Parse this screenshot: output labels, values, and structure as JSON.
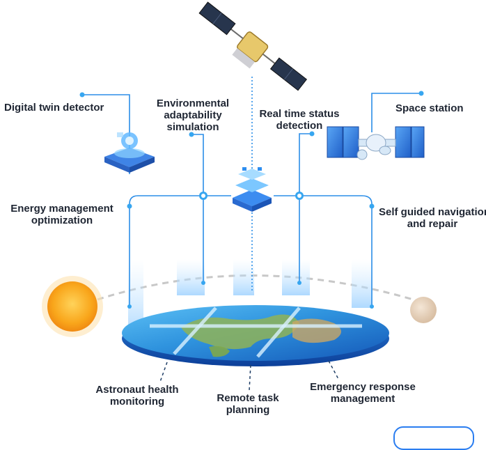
{
  "labels": {
    "digital_twin": "Digital twin detector",
    "environmental_1": "Environmental",
    "environmental_2": "adaptability",
    "environmental_3": "simulation",
    "real_time_1": "Real time status",
    "real_time_2": "detection",
    "space_station": "Space station",
    "energy_1": "Energy management",
    "energy_2": "optimization",
    "self_guided_1": "Self guided navigation",
    "self_guided_2": "and repair",
    "astronaut_1": "Astronaut health",
    "astronaut_2": "monitoring",
    "remote_1": "Remote task",
    "remote_2": "planning",
    "emergency_1": "Emergency response",
    "emergency_2": "management"
  },
  "colors": {
    "line": "#2b8ee8",
    "node": "#37a6f0",
    "text": "#1f2633",
    "sun": "#f7a41c",
    "earth_blue": "#1f7fd6"
  },
  "icons": [
    "satellite-icon",
    "hologram-platform-icon",
    "data-hub-icon",
    "space-station-icon",
    "sun-icon",
    "moon-icon",
    "earth-disc-icon"
  ]
}
